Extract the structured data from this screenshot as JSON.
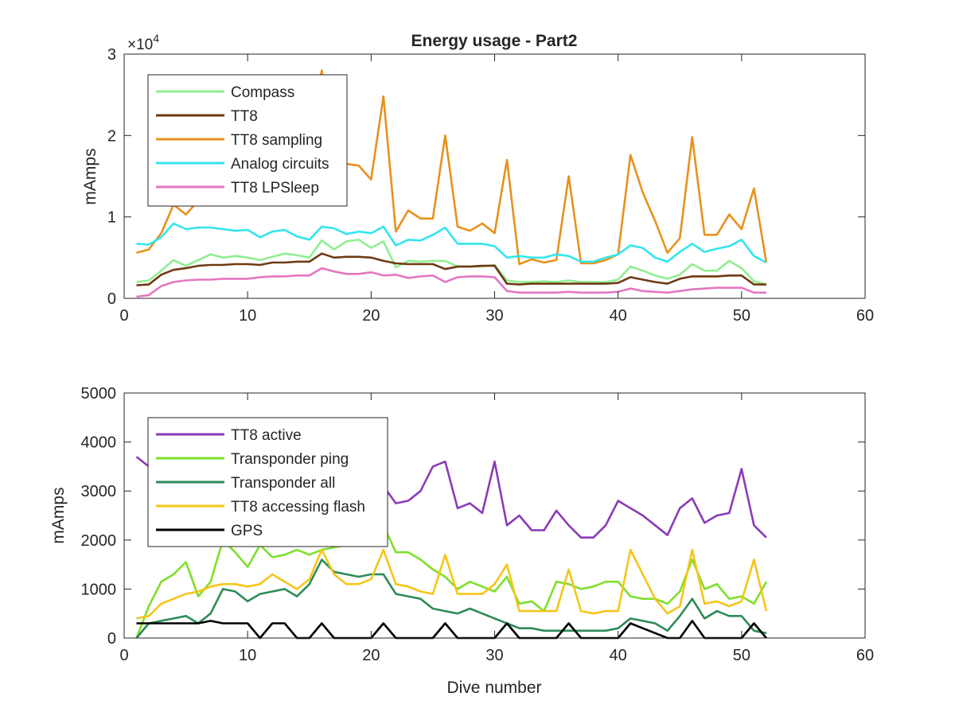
{
  "chart_data": [
    {
      "type": "line",
      "title": "Energy usage - Part2",
      "xlabel": "",
      "ylabel": "mAmps",
      "xlim": [
        0,
        60
      ],
      "ylim": [
        0,
        30000
      ],
      "xticks": [
        "0",
        "10",
        "20",
        "30",
        "40",
        "50",
        "60"
      ],
      "yticks": [
        "0",
        "1",
        "2",
        "3"
      ],
      "exponent_label": "×10",
      "exponent_power": "4",
      "grid": false,
      "legend_position": "top-left",
      "x": [
        1,
        2,
        3,
        4,
        5,
        6,
        7,
        8,
        9,
        10,
        11,
        12,
        13,
        14,
        15,
        16,
        17,
        18,
        19,
        20,
        21,
        22,
        23,
        24,
        25,
        26,
        27,
        28,
        29,
        30,
        31,
        32,
        33,
        34,
        35,
        36,
        37,
        38,
        39,
        40,
        41,
        42,
        43,
        44,
        45,
        46,
        47,
        48,
        49,
        50,
        51,
        52
      ],
      "series": [
        {
          "name": "Compass",
          "color": "#90ee90",
          "values": [
            2000,
            2200,
            3400,
            4700,
            4000,
            4700,
            5400,
            5000,
            5200,
            5000,
            4700,
            5100,
            5500,
            5300,
            5000,
            7100,
            6000,
            7000,
            7200,
            6200,
            7000,
            3800,
            4600,
            4500,
            4600,
            4600,
            3900,
            3900,
            3900,
            4100,
            2200,
            2000,
            2000,
            2100,
            2000,
            2200,
            2000,
            2000,
            2000,
            2300,
            3900,
            3400,
            2800,
            2400,
            2900,
            4200,
            3400,
            3400,
            4600,
            3700,
            2100,
            1700
          ],
          "draw": true
        },
        {
          "name": "TT8",
          "color": "#6e3a13",
          "values": [
            1600,
            1700,
            2900,
            3500,
            3700,
            4000,
            4100,
            4100,
            4200,
            4200,
            4100,
            4400,
            4400,
            4500,
            4500,
            5500,
            5000,
            5100,
            5100,
            5000,
            4600,
            4300,
            4200,
            4200,
            4200,
            3600,
            3900,
            3900,
            4000,
            4000,
            1800,
            1700,
            1800,
            1800,
            1800,
            1800,
            1800,
            1800,
            1800,
            1900,
            2600,
            2300,
            2000,
            1800,
            2400,
            2700,
            2700,
            2700,
            2800,
            2800,
            1700,
            1700
          ],
          "draw": true
        },
        {
          "name": "TT8 sampling",
          "color": "#e8911c",
          "values": [
            5600,
            6000,
            8000,
            11500,
            10300,
            12000,
            13000,
            15000,
            15500,
            16000,
            11500,
            17000,
            18000,
            18500,
            20000,
            28000,
            14000,
            16500,
            16300,
            14600,
            24800,
            8200,
            10800,
            9800,
            9800,
            20000,
            8800,
            8300,
            9200,
            8000,
            17000,
            4200,
            4800,
            4400,
            4700,
            15000,
            4300,
            4300,
            4700,
            5400,
            17600,
            13000,
            9500,
            5600,
            7400,
            19800,
            7800,
            7800,
            10300,
            8500,
            13500,
            4400
          ],
          "draw": true
        },
        {
          "name": "Analog circuits",
          "color": "#33e5ef",
          "values": [
            6700,
            6600,
            7500,
            9200,
            8500,
            8700,
            8700,
            8500,
            8300,
            8400,
            7500,
            8200,
            8400,
            7600,
            7200,
            8800,
            8600,
            7900,
            8200,
            8000,
            8800,
            6500,
            7200,
            7100,
            7800,
            8700,
            6700,
            6700,
            6700,
            6400,
            5000,
            5200,
            5000,
            5000,
            5400,
            5200,
            4500,
            4500,
            5000,
            5400,
            6500,
            6200,
            5000,
            4500,
            5700,
            6700,
            5700,
            6100,
            6400,
            7200,
            5200,
            4400
          ],
          "draw": true
        },
        {
          "name": "TT8 LPSleep",
          "color": "#e377c2",
          "values": [
            200,
            400,
            1500,
            2000,
            2200,
            2300,
            2300,
            2400,
            2400,
            2400,
            2600,
            2700,
            2700,
            2800,
            2800,
            3700,
            3300,
            3000,
            3000,
            3200,
            2800,
            2900,
            2500,
            2700,
            2800,
            2000,
            2600,
            2700,
            2700,
            2600,
            900,
            700,
            700,
            700,
            700,
            800,
            700,
            700,
            700,
            800,
            1200,
            900,
            800,
            700,
            900,
            1100,
            1200,
            1300,
            1300,
            1300,
            700,
            700
          ],
          "draw": true
        }
      ]
    },
    {
      "type": "line",
      "title": "",
      "xlabel": "Dive number",
      "ylabel": "mAmps",
      "xlim": [
        0,
        60
      ],
      "ylim": [
        0,
        5000
      ],
      "xticks": [
        "0",
        "10",
        "20",
        "30",
        "40",
        "50",
        "60"
      ],
      "yticks": [
        "0",
        "1000",
        "2000",
        "3000",
        "4000",
        "5000"
      ],
      "grid": false,
      "legend_position": "top-left",
      "x": [
        1,
        2,
        3,
        4,
        5,
        6,
        7,
        8,
        9,
        10,
        11,
        12,
        13,
        14,
        15,
        16,
        17,
        18,
        19,
        20,
        21,
        22,
        23,
        24,
        25,
        26,
        27,
        28,
        29,
        30,
        31,
        32,
        33,
        34,
        35,
        36,
        37,
        38,
        39,
        40,
        41,
        42,
        43,
        44,
        45,
        46,
        47,
        48,
        49,
        50,
        51,
        52
      ],
      "series": [
        {
          "name": "TT8 active",
          "color": "#8a3bb8",
          "values": [
            3700,
            3500,
            3600,
            3600,
            3500,
            3500,
            3450,
            3400,
            3300,
            3300,
            3300,
            3250,
            3200,
            3200,
            3300,
            3300,
            3400,
            3300,
            3300,
            3200,
            3100,
            2750,
            2800,
            3000,
            3500,
            3600,
            2650,
            2750,
            2550,
            3600,
            2300,
            2500,
            2200,
            2200,
            2600,
            2300,
            2050,
            2050,
            2300,
            2800,
            2650,
            2500,
            2300,
            2100,
            2650,
            2850,
            2350,
            2500,
            2550,
            3450,
            2300,
            2050
          ]
        },
        {
          "name": "Transponder ping",
          "color": "#7ee02a",
          "values": [
            0,
            650,
            1150,
            1300,
            1550,
            850,
            1150,
            2000,
            1750,
            1450,
            1900,
            1650,
            1700,
            1800,
            1700,
            1800,
            1850,
            1900,
            1950,
            2000,
            2300,
            1750,
            1750,
            1600,
            1400,
            1250,
            1000,
            1150,
            1050,
            950,
            1250,
            700,
            750,
            550,
            1150,
            1100,
            1000,
            1050,
            1150,
            1150,
            850,
            800,
            800,
            700,
            950,
            1600,
            1000,
            1100,
            800,
            850,
            700,
            1150
          ]
        },
        {
          "name": "Transponder all",
          "color": "#2e8b57",
          "values": [
            0,
            300,
            350,
            400,
            450,
            300,
            500,
            1000,
            950,
            750,
            900,
            950,
            1000,
            850,
            1100,
            1600,
            1350,
            1300,
            1250,
            1300,
            1300,
            900,
            850,
            800,
            600,
            550,
            500,
            600,
            500,
            400,
            300,
            200,
            200,
            150,
            150,
            150,
            150,
            150,
            150,
            200,
            400,
            350,
            300,
            150,
            450,
            800,
            400,
            550,
            450,
            450,
            150,
            100
          ]
        },
        {
          "name": "TT8 accessing flash",
          "color": "#f5c518",
          "values": [
            400,
            450,
            700,
            800,
            900,
            950,
            1050,
            1100,
            1100,
            1050,
            1100,
            1300,
            1150,
            1000,
            1200,
            1800,
            1300,
            1100,
            1100,
            1200,
            1800,
            1100,
            1050,
            950,
            900,
            1700,
            900,
            900,
            900,
            1100,
            1500,
            550,
            550,
            550,
            550,
            1400,
            550,
            500,
            550,
            550,
            1800,
            1300,
            800,
            500,
            650,
            1800,
            700,
            750,
            650,
            750,
            1600,
            550
          ]
        },
        {
          "name": "GPS",
          "color": "#000000",
          "values": [
            300,
            300,
            300,
            300,
            300,
            300,
            350,
            300,
            300,
            300,
            0,
            300,
            300,
            0,
            0,
            300,
            0,
            0,
            0,
            0,
            300,
            0,
            0,
            0,
            0,
            300,
            0,
            0,
            0,
            0,
            300,
            0,
            0,
            0,
            0,
            300,
            0,
            0,
            0,
            0,
            300,
            200,
            100,
            0,
            0,
            350,
            0,
            0,
            0,
            0,
            300,
            0
          ]
        }
      ]
    }
  ]
}
